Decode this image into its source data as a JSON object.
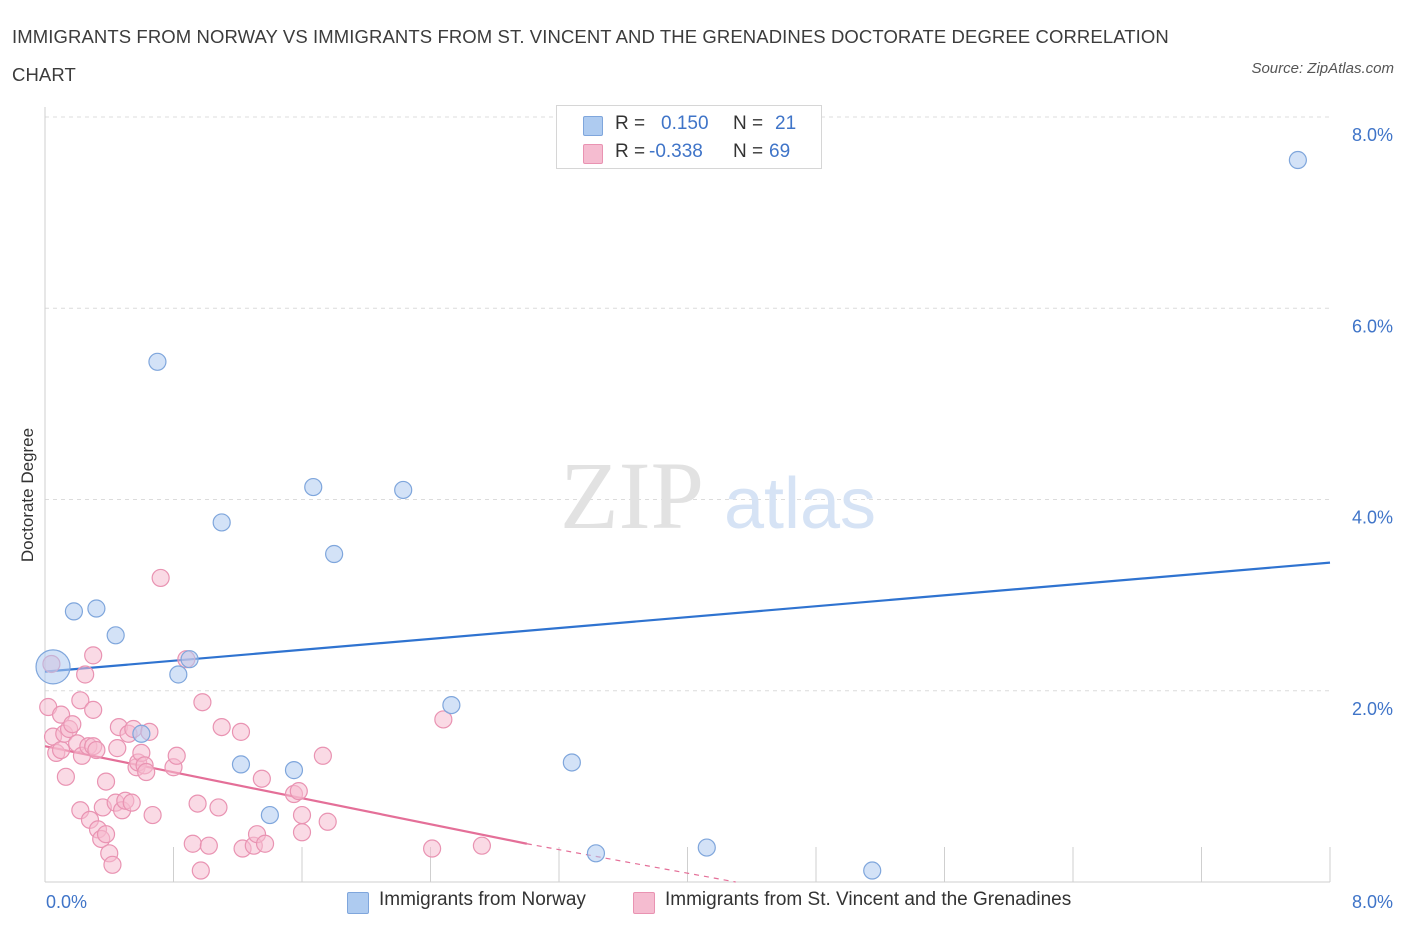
{
  "title": "IMMIGRANTS FROM NORWAY VS IMMIGRANTS FROM ST. VINCENT AND THE GRENADINES DOCTORATE DEGREE CORRELATION CHART",
  "source": "Source: ZipAtlas.com",
  "watermark": {
    "zip": "ZIP",
    "atlas": "atlas"
  },
  "legend_top": [
    {
      "r_label": "R =",
      "r_value": "0.150",
      "n_label": "N =",
      "n_value": "21",
      "color": "#aecbf0"
    },
    {
      "r_label": "R =",
      "r_value": "-0.338",
      "n_label": "N =",
      "n_value": "69",
      "color": "#f5bcd0"
    }
  ],
  "legend_bottom": [
    {
      "label": "Immigrants from Norway",
      "color": "#aecbf0"
    },
    {
      "label": "Immigrants from St. Vincent and the Grenadines",
      "color": "#f5bcd0"
    }
  ],
  "chart_data": {
    "type": "scatter",
    "title": "IMMIGRANTS FROM NORWAY VS IMMIGRANTS FROM ST. VINCENT AND THE GRENADINES DOCTORATE DEGREE CORRELATION CHART",
    "xlabel": "",
    "ylabel": "Doctorate Degree",
    "xlim": [
      0,
      8
    ],
    "ylim": [
      0,
      8
    ],
    "x_tick_labels": [
      "0.0%",
      "8.0%"
    ],
    "y_ticks": [
      2,
      4,
      6,
      8
    ],
    "y_tick_labels": [
      "2.0%",
      "4.0%",
      "6.0%",
      "8.0%"
    ],
    "grid": true,
    "legend_position": "top-center",
    "series": [
      {
        "name": "Immigrants from Norway",
        "color": "#aecbf0",
        "stroke": "#7fa6dc",
        "trend_color": "#2f73d0",
        "trend": {
          "x": [
            0,
            8
          ],
          "y": [
            2.2,
            3.34
          ]
        },
        "points": [
          [
            0.05,
            2.25
          ],
          [
            0.18,
            2.83
          ],
          [
            0.32,
            2.86
          ],
          [
            0.44,
            2.58
          ],
          [
            0.6,
            1.55
          ],
          [
            0.7,
            5.44
          ],
          [
            0.83,
            2.17
          ],
          [
            0.9,
            2.33
          ],
          [
            1.1,
            3.76
          ],
          [
            1.22,
            1.23
          ],
          [
            1.4,
            0.7
          ],
          [
            1.55,
            1.17
          ],
          [
            1.67,
            4.13
          ],
          [
            1.8,
            3.43
          ],
          [
            2.23,
            4.1
          ],
          [
            2.53,
            1.85
          ],
          [
            3.28,
            1.25
          ],
          [
            3.43,
            0.3
          ],
          [
            4.12,
            0.36
          ],
          [
            5.15,
            0.12
          ],
          [
            7.8,
            7.55
          ]
        ]
      },
      {
        "name": "Immigrants from St. Vincent and the Grenadines",
        "color": "#f5bcd0",
        "stroke": "#e993b2",
        "trend_color": "#e46f98",
        "trend": {
          "x": [
            0,
            3.0
          ],
          "y": [
            1.42,
            0.4
          ]
        },
        "trend_dashed": {
          "x": [
            3.0,
            4.3
          ],
          "y": [
            0.4,
            0.0
          ]
        },
        "points": [
          [
            0.02,
            1.83
          ],
          [
            0.04,
            2.28
          ],
          [
            0.05,
            1.52
          ],
          [
            0.07,
            1.35
          ],
          [
            0.1,
            1.75
          ],
          [
            0.1,
            1.38
          ],
          [
            0.12,
            1.55
          ],
          [
            0.13,
            1.1
          ],
          [
            0.15,
            1.6
          ],
          [
            0.17,
            1.65
          ],
          [
            0.2,
            1.45
          ],
          [
            0.22,
            1.9
          ],
          [
            0.22,
            0.75
          ],
          [
            0.23,
            1.32
          ],
          [
            0.25,
            2.17
          ],
          [
            0.27,
            1.42
          ],
          [
            0.28,
            0.65
          ],
          [
            0.3,
            1.8
          ],
          [
            0.3,
            1.42
          ],
          [
            0.3,
            2.37
          ],
          [
            0.32,
            1.38
          ],
          [
            0.33,
            0.55
          ],
          [
            0.35,
            0.45
          ],
          [
            0.36,
            0.78
          ],
          [
            0.38,
            1.05
          ],
          [
            0.38,
            0.5
          ],
          [
            0.4,
            0.3
          ],
          [
            0.42,
            0.18
          ],
          [
            0.44,
            0.83
          ],
          [
            0.45,
            1.4
          ],
          [
            0.46,
            1.62
          ],
          [
            0.48,
            0.75
          ],
          [
            0.5,
            0.85
          ],
          [
            0.52,
            1.55
          ],
          [
            0.54,
            0.83
          ],
          [
            0.55,
            1.6
          ],
          [
            0.57,
            1.2
          ],
          [
            0.58,
            1.25
          ],
          [
            0.6,
            1.35
          ],
          [
            0.62,
            1.22
          ],
          [
            0.63,
            1.15
          ],
          [
            0.65,
            1.57
          ],
          [
            0.67,
            0.7
          ],
          [
            0.72,
            3.18
          ],
          [
            0.8,
            1.2
          ],
          [
            0.82,
            1.32
          ],
          [
            0.88,
            2.33
          ],
          [
            0.92,
            0.4
          ],
          [
            0.95,
            0.82
          ],
          [
            0.97,
            0.12
          ],
          [
            0.98,
            1.88
          ],
          [
            1.02,
            0.38
          ],
          [
            1.08,
            0.78
          ],
          [
            1.1,
            1.62
          ],
          [
            1.22,
            1.57
          ],
          [
            1.23,
            0.35
          ],
          [
            1.3,
            0.38
          ],
          [
            1.32,
            0.5
          ],
          [
            1.35,
            1.08
          ],
          [
            1.37,
            0.4
          ],
          [
            1.55,
            0.92
          ],
          [
            1.58,
            0.95
          ],
          [
            1.6,
            0.52
          ],
          [
            1.6,
            0.7
          ],
          [
            1.73,
            1.32
          ],
          [
            1.76,
            0.63
          ],
          [
            2.48,
            1.7
          ],
          [
            2.41,
            0.35
          ],
          [
            2.72,
            0.38
          ]
        ]
      }
    ]
  }
}
